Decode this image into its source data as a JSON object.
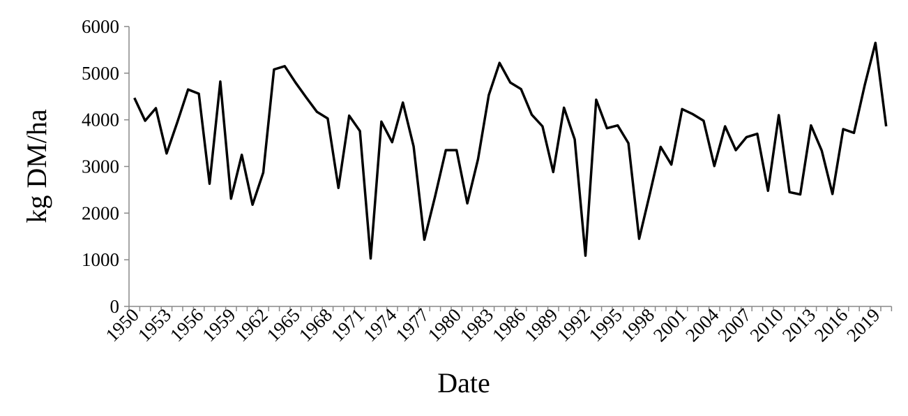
{
  "chart_data": {
    "type": "line",
    "x_label": "Date",
    "y_label": "kg DM/ha",
    "categories": [
      "1950",
      null,
      null,
      "1953",
      null,
      null,
      "1956",
      null,
      null,
      "1959",
      null,
      null,
      "1962",
      null,
      null,
      "1965",
      null,
      null,
      "1968",
      null,
      null,
      "1971",
      null,
      null,
      "1974",
      null,
      null,
      "1977",
      null,
      null,
      "1980",
      null,
      null,
      "1983",
      null,
      null,
      "1986",
      null,
      null,
      "1989",
      null,
      null,
      "1992",
      null,
      null,
      "1995",
      null,
      null,
      "1998",
      null,
      null,
      "2001",
      null,
      null,
      "2004",
      null,
      null,
      "2007",
      null,
      null,
      "2010",
      null,
      null,
      "2013",
      null,
      null,
      "2016",
      null,
      null,
      "2019",
      null
    ],
    "values": [
      4470,
      3980,
      4250,
      3280,
      3950,
      4650,
      4560,
      2630,
      4820,
      2310,
      3250,
      2180,
      2870,
      5080,
      5150,
      4800,
      4480,
      4170,
      4030,
      2540,
      4090,
      3760,
      1030,
      3960,
      3520,
      4370,
      3430,
      1430,
      2360,
      3350,
      3350,
      2210,
      3160,
      4530,
      5220,
      4800,
      4660,
      4110,
      3860,
      2880,
      4260,
      3580,
      1090,
      4430,
      3820,
      3880,
      3500,
      1450,
      2420,
      3420,
      3040,
      4230,
      4120,
      3980,
      3010,
      3860,
      3350,
      3630,
      3700,
      2480,
      4100,
      2450,
      2400,
      3880,
      3340,
      2410,
      3800,
      3720,
      4740,
      5650,
      3860
    ],
    "color": "#000000",
    "ylim": [
      0,
      6000
    ],
    "yticks": [
      0,
      1000,
      2000,
      3000,
      4000,
      5000,
      6000
    ]
  }
}
